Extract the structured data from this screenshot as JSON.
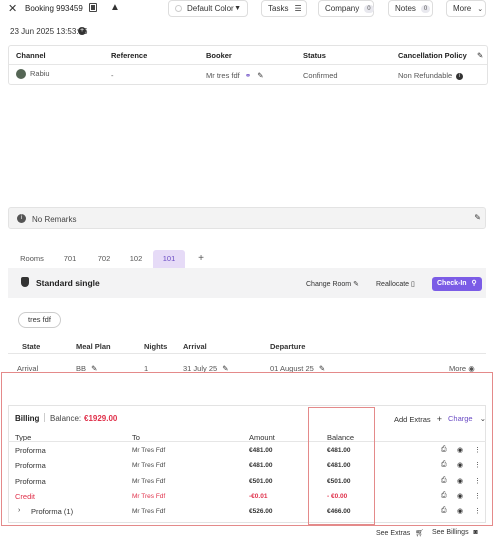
{
  "header": {
    "booking_title": "Booking 993459",
    "color_select": "Default Color",
    "tasks_label": "Tasks",
    "company_label": "Company",
    "company_count": "0",
    "notes_label": "Notes",
    "notes_count": "0",
    "more_label": "More"
  },
  "date": "23 Jun 2025 13:53:16",
  "booking_table": {
    "headers": [
      "Channel",
      "Reference",
      "Booker",
      "Status",
      "Cancellation Policy"
    ],
    "row": {
      "channel": "Rabiu",
      "reference": "-",
      "booker": "Mr tres fdf",
      "status": "Confirmed",
      "cancellation": "Non Refundable"
    }
  },
  "remarks": "No Remarks",
  "rooms": {
    "tabs": [
      "Rooms",
      "701",
      "702",
      "102",
      "101",
      "+"
    ],
    "active_tab": "101",
    "room_name": "Standard single",
    "change_room": "Change Room",
    "reallocate": "Reallocate",
    "check_in": "Check-In",
    "guest": "tres fdf",
    "table_headers": [
      "State",
      "Meal Plan",
      "Nights",
      "Arrival",
      "Departure"
    ],
    "row": {
      "state": "Arrival",
      "meal_plan": "BB",
      "nights": "1",
      "arrival": "31 July 25",
      "departure": "01 August 25",
      "more": "More"
    }
  },
  "billing": {
    "label": "Billing",
    "balance_label": "Balance:",
    "balance_value": "€1929.00",
    "add_extras": "Add Extras",
    "charge": "Charge",
    "headers": [
      "Type",
      "To",
      "Amount",
      "Balance"
    ],
    "rows": [
      {
        "type": "Proforma",
        "to": "Mr Tres Fdf",
        "amount": "€481.00",
        "balance": "€481.00"
      },
      {
        "type": "Proforma",
        "to": "Mr Tres Fdf",
        "amount": "€481.00",
        "balance": "€481.00"
      },
      {
        "type": "Proforma",
        "to": "Mr Tres Fdf",
        "amount": "€501.00",
        "balance": "€501.00"
      },
      {
        "type": "Credit",
        "to": "Mr Tres Fdf",
        "amount": "-€0.01",
        "balance": "- €0.00"
      },
      {
        "type": "Proforma (1)",
        "to": "Mr Tres Fdf",
        "amount": "€526.00",
        "balance": "€466.00"
      }
    ]
  },
  "footer": {
    "see_extras": "See Extras",
    "see_billings": "See Billings"
  },
  "colors": {
    "accent": "#7b5ce6",
    "negative": "#e0304a",
    "highlight_box": "#e48a8a"
  }
}
